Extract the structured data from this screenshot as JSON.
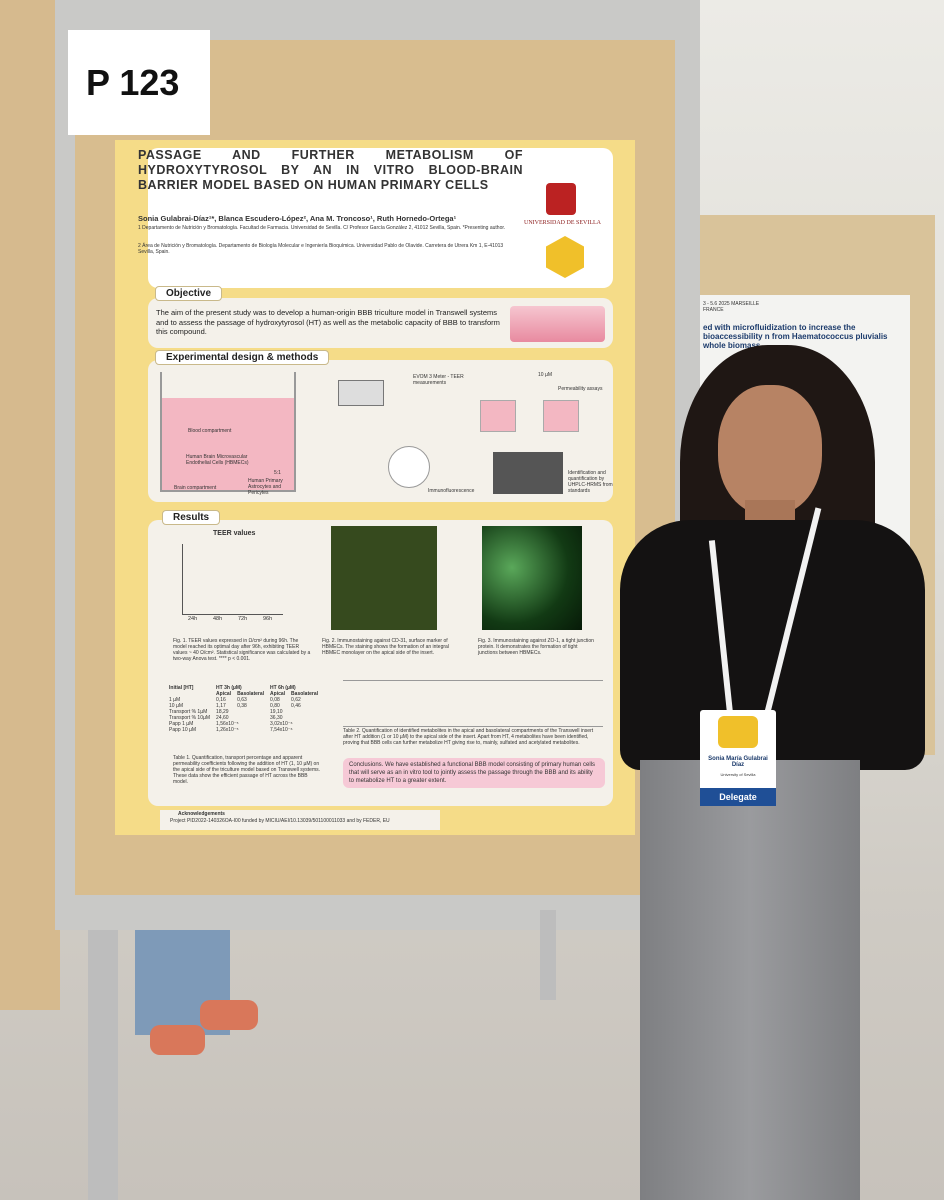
{
  "sign": "P 123",
  "poster": {
    "title": "PASSAGE AND FURTHER METABOLISM OF HYDROXYTYROSOL BY AN IN VITRO BLOOD-BRAIN BARRIER MODEL BASED ON HUMAN PRIMARY CELLS",
    "authors": "Sonia Gulabrai-Díaz¹*, Blanca Escudero-López², Ana M. Troncoso¹, Ruth Hornedo-Ortega¹",
    "affiliations": [
      "1 Departamento de Nutrición y Bromatología. Facultad de Farmacia. Universidad de Sevilla. C/ Profesor García González 2, 41012 Sevilla, Spain. *Presenting author.",
      "2 Área de Nutrición y Bromatología. Departamento de Biología Molecular e Ingeniería Bioquímica. Universidad Pablo de Olavide. Carretera de Utrera Km 1, E-41013 Sevilla, Spain."
    ],
    "university": "UNIVERSIDAD DE SEVILLA",
    "objective": {
      "heading": "Objective",
      "text": "The aim of the present study was to develop a human-origin BBB triculture model in Transwell systems and to assess the passage of hydroxytyrosol (HT) as well as the metabolic capacity of BBB to transform this compound."
    },
    "methods": {
      "heading": "Experimental design & methods",
      "blood": "Blood compartment",
      "cells": "Human Brain Microvascular Endothelial Cells (HBMECs)",
      "brain": "Brain compartment",
      "astro": "Human Primary Astrocytes and Pericytes",
      "ratio": "5:1",
      "teer": "EVOM 3 Meter - TEER measurements",
      "dose": "10 µM",
      "perm": "Permeability assays",
      "immuno": "Immunofluorescence",
      "ident": "Identification and quantification by UHPLC-HRMS from standards"
    },
    "results": {
      "heading": "Results",
      "teer_title": "TEER values",
      "teer_times": [
        "24h",
        "48h",
        "72h",
        "96h"
      ],
      "captions": [
        "Fig. 1. TEER values expressed in Ω/cm² during 96h. The model reached its optimal day after 96h, exhibiting TEER values ~ 40 Ω/cm². Statistical significance was calculated by a two-way Anova test. **** p < 0.001.",
        "Fig. 2. Immunostaining against CD-31, surface marker of HBMECs. The staining shows the formation of an integral HBMEC monolayer on the apical side of the insert.",
        "Fig. 3. Immunostaining against ZO-1, a tight junction protein. It demonstrates the formation of tight junctions between HBMECs."
      ],
      "table1": [
        [
          "Initial [HT]",
          "HT 3h (µM)",
          "HT 6h (µM)"
        ],
        [
          "",
          "Apical",
          "Basolateral",
          "Apical",
          "Basolateral"
        ],
        [
          "1 µM",
          "0,16",
          "0,63",
          "0,08",
          "0,62"
        ],
        [
          "10 µM",
          "1,17",
          "0,38",
          "0,80",
          "0,46"
        ],
        [
          "Transport % 1µM",
          "18,29",
          "19,10"
        ],
        [
          "Transport % 10µM",
          "24,60",
          "36,30"
        ],
        [
          "Papp 1 µM",
          "1,56x10⁻⁵",
          "3,02x10⁻⁶"
        ],
        [
          "Papp 10 µM",
          "1,26x10⁻⁵",
          "7,54x10⁻⁶"
        ]
      ],
      "table1_caption": "Table 1. Quantification, transport percentage and apparent permeability coefficients following the addition of HT (1, 10 µM) on the apical side of the triculture model based on Transwell systems. These data show the efficient passage of HT across the BBB model.",
      "table2_caption": "Table 2. Quantification of identified metabolites in the apical and basolateral compartments of the Transwell insert after HT addition (1 or 10 µM) to the apical side of the insert. Apart from HT, 4 metabolites have been identified, proving that BBB cells can further metabolize HT giving rise to, mainly, sulfated and acetylated metabolites."
    },
    "conclusions": "Conclusions. We have established a functional BBB model consisting of primary human cells that will serve as an in vitro tool to jointly assess the passage through the BBB and its ability to metabolize HT to a greater extent.",
    "acknowledgements": {
      "heading": "Acknowledgements",
      "text": "Project PID2022-140326OA-I00 funded by MICIU/AEI/10.13039/501100011033 and by FEDER, EU"
    }
  },
  "badge": {
    "name": "Sonia María Gulabrai Díaz",
    "affiliation": "University of Sevilla",
    "role": "Delegate"
  },
  "background_poster": {
    "event": "3 - 5.6 2025 MARSEILLE FRANCE",
    "title": "ed with microfluidization to increase the bioaccessibility n from Haematococcus pluvialis whole biomass"
  }
}
